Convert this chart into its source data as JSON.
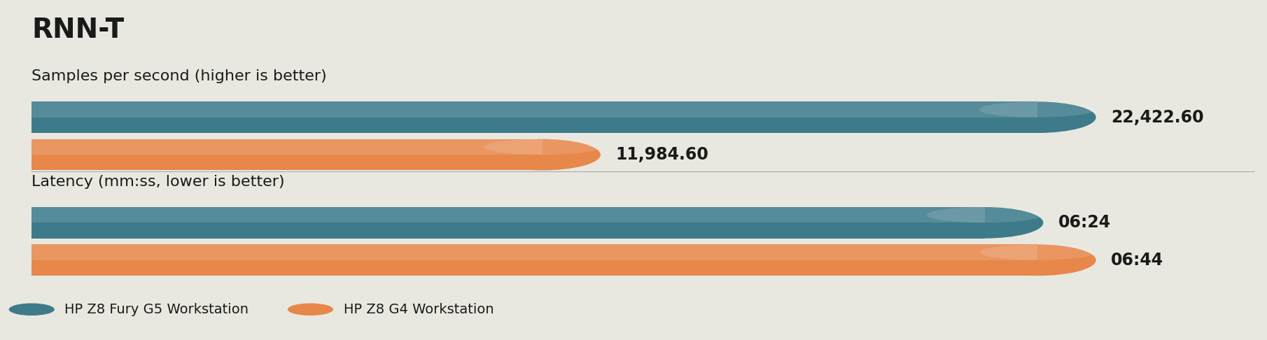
{
  "title": "RNN-T",
  "background_color": "#e8e8e0",
  "sections": [
    {
      "label": "Samples per second (higher is better)",
      "bars": [
        {
          "value": 22422.6,
          "max_value": 22422.6,
          "label": "22,422.60",
          "color": "#3d7a8a"
        },
        {
          "value": 11984.6,
          "max_value": 22422.6,
          "label": "11,984.60",
          "color": "#e8874a"
        }
      ]
    },
    {
      "label": "Latency (mm:ss, lower is better)",
      "bars": [
        {
          "value": 384,
          "max_value": 404,
          "label": "06:24",
          "color": "#3d7a8a"
        },
        {
          "value": 404,
          "max_value": 404,
          "label": "06:44",
          "color": "#e8874a"
        }
      ]
    }
  ],
  "legend": [
    {
      "label": "HP Z8 Fury G5 Workstation",
      "color": "#3d7a8a"
    },
    {
      "label": "HP Z8 G4 Workstation",
      "color": "#e8874a"
    }
  ],
  "title_fontsize": 28,
  "section_label_fontsize": 16,
  "bar_label_fontsize": 17,
  "legend_fontsize": 14
}
